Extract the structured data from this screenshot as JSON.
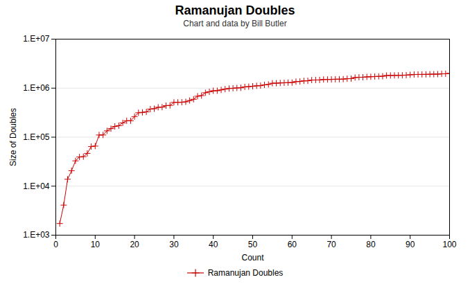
{
  "chart_data": {
    "type": "line",
    "title": "Ramanujan Doubles",
    "subtitle": "Chart and data by Bill Butler",
    "xlabel": "Count",
    "ylabel": "Size of Doubles",
    "x": [
      1,
      2,
      3,
      4,
      5,
      6,
      7,
      8,
      9,
      10,
      11,
      12,
      13,
      14,
      15,
      16,
      17,
      18,
      19,
      20,
      21,
      22,
      23,
      24,
      25,
      26,
      27,
      28,
      29,
      30,
      31,
      32,
      33,
      34,
      35,
      36,
      37,
      38,
      39,
      40,
      41,
      42,
      43,
      44,
      45,
      46,
      47,
      48,
      49,
      50,
      51,
      52,
      53,
      54,
      55,
      56,
      57,
      58,
      59,
      60,
      61,
      62,
      63,
      64,
      65,
      66,
      67,
      68,
      69,
      70,
      71,
      72,
      73,
      74,
      75,
      76,
      77,
      78,
      79,
      80,
      81,
      82,
      83,
      84,
      85,
      86,
      87,
      88,
      89,
      90,
      91,
      92,
      93,
      94,
      95,
      96,
      97,
      98,
      99,
      100
    ],
    "series": [
      {
        "name": "Ramanujan Doubles",
        "color": "#cc0000",
        "marker": "plus",
        "values": [
          1729,
          4104,
          13832,
          20683,
          32832,
          39312,
          40033,
          46683,
          64232,
          65728,
          110656,
          110808,
          134379,
          149389,
          165464,
          171288,
          195841,
          216027,
          216125,
          262656,
          314496,
          320264,
          327763,
          373464,
          380689,
          407000,
          409752,
          439101,
          443889,
          513000,
          513856,
          515375,
          525824,
          558441,
          593047,
          684019,
          704977,
          805688,
          842751,
          885248,
          886464,
          920673,
          955016,
          984067,
          994688,
          1009736,
          1016496,
          1061424,
          1073375,
          1092728,
          1116624,
          1124145,
          1165608,
          1190184,
          1259712,
          1261000,
          1276416,
          1285848,
          1296000,
          1299144,
          1360448,
          1367631,
          1407672,
          1413721,
          1461888,
          1467000,
          1468152,
          1501848,
          1504296,
          1508328,
          1520833,
          1524096,
          1528776,
          1558008,
          1566917,
          1647024,
          1667484,
          1669248,
          1697285,
          1709496,
          1728027,
          1737664,
          1748023,
          1811443,
          1815848,
          1819629,
          1825200,
          1830464,
          1845297,
          1872648,
          1898685,
          1904832,
          1907128,
          1910016,
          1921000,
          1926884,
          1930824,
          1958904,
          1967064,
          2000376
        ]
      }
    ],
    "xlim": [
      0,
      100
    ],
    "xticks": [
      0,
      10,
      20,
      30,
      40,
      50,
      60,
      70,
      80,
      90,
      100
    ],
    "ylim": [
      1000,
      10000000
    ],
    "yticks": [
      {
        "value": 1000,
        "label": "1.E+03"
      },
      {
        "value": 10000,
        "label": "1.E+04"
      },
      {
        "value": 100000,
        "label": "1.E+05"
      },
      {
        "value": 1000000,
        "label": "1.E+06"
      },
      {
        "value": 10000000,
        "label": "1.E+07"
      }
    ],
    "log": "y",
    "grid": true,
    "legend": "bottom"
  }
}
